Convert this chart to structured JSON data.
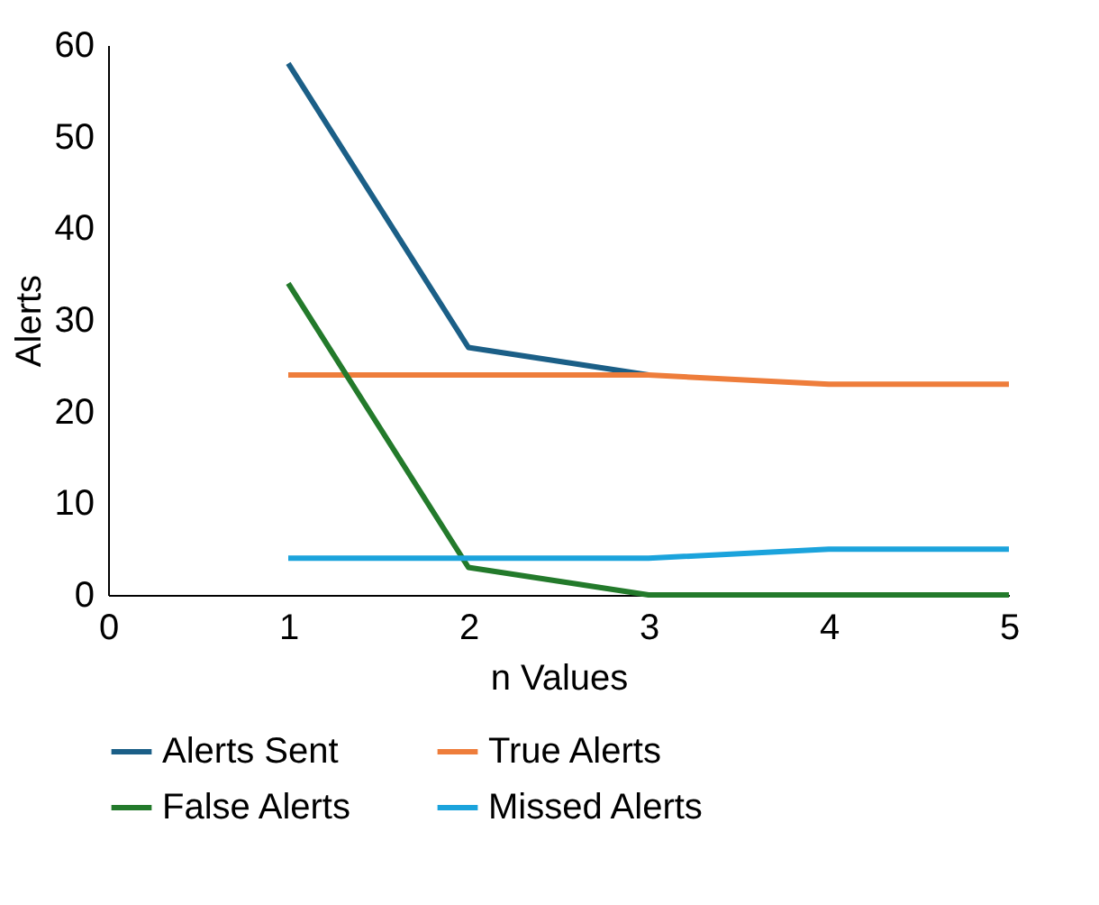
{
  "chart_data": {
    "type": "line",
    "xlabel": "n Values",
    "ylabel": "Alerts",
    "x": [
      1,
      2,
      3,
      4,
      5
    ],
    "series": [
      {
        "name": "Alerts Sent",
        "color": "#1b5f87",
        "values": [
          58,
          27,
          24,
          null,
          null
        ]
      },
      {
        "name": "True Alerts",
        "color": "#ee7d3b",
        "values": [
          24,
          24,
          24,
          23,
          23
        ]
      },
      {
        "name": "False Alerts",
        "color": "#237a2b",
        "values": [
          34,
          3,
          0,
          0,
          0
        ]
      },
      {
        "name": "Missed Alerts",
        "color": "#1ba3dc",
        "values": [
          4,
          4,
          4,
          5,
          5
        ]
      }
    ],
    "xlim": [
      0,
      5
    ],
    "xticks": [
      0,
      1,
      2,
      3,
      4,
      5
    ],
    "ylim": [
      0,
      60
    ],
    "yticks": [
      0,
      10,
      20,
      30,
      40,
      50,
      60
    ],
    "grid": false,
    "legend": "bottom",
    "marker": "none",
    "line_style": "solid"
  }
}
